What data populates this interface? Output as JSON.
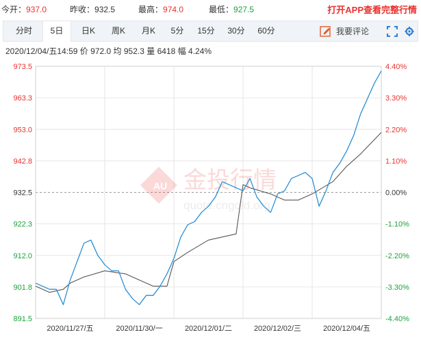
{
  "quote": {
    "open_label": "今开：",
    "open_value": "937.0",
    "prev_label": "昨收：",
    "prev_value": "932.5",
    "high_label": "最高：",
    "high_value": "974.0",
    "low_label": "最低：",
    "low_value": "927.5",
    "app_link": "打开APP查看完整行情"
  },
  "tabs": [
    "分时",
    "5日",
    "日K",
    "周K",
    "月K",
    "5分",
    "15分",
    "30分",
    "60分"
  ],
  "active_tab": "5日",
  "toolbar": {
    "comment_label": "我要评论"
  },
  "info": {
    "datetime": "2020/12/04/五14:59",
    "price_label": "价",
    "price": "972.0",
    "avg_label": "均",
    "avg": "952.3",
    "volume_label": "量",
    "volume": "6418",
    "amp_label": "幅",
    "amp": "4.24%"
  },
  "watermark": {
    "brand": "金投行情",
    "url": "quote.cngold.org"
  },
  "colors": {
    "up": "#e8322e",
    "down": "#1aa33b",
    "price_line": "#2b8fd6",
    "avg_line": "#555555",
    "grid": "#e6e6e6"
  },
  "chart_data": {
    "type": "line",
    "prev_close": 932.5,
    "y_ticks": [
      "973.5",
      "963.3",
      "953.0",
      "942.8",
      "932.5",
      "922.3",
      "912.0",
      "901.8",
      "891.5"
    ],
    "pct_ticks": [
      "4.40%",
      "3.30%",
      "2.20%",
      "1.10%",
      "0.00%",
      "-1.10%",
      "-2.20%",
      "-3.30%",
      "-4.40%"
    ],
    "ylim": [
      891.5,
      973.5
    ],
    "x_labels": [
      "2020/11/27/五",
      "2020/11/30/一",
      "2020/12/01/二",
      "2020/12/02/三",
      "2020/12/04/五"
    ],
    "series": [
      {
        "x": [
          0,
          0.02,
          0.04,
          0.06,
          0.08,
          0.1,
          0.12,
          0.14,
          0.16,
          0.18,
          0.2,
          0.22,
          0.24,
          0.26,
          0.28,
          0.3,
          0.32,
          0.34,
          0.36,
          0.38,
          0.4,
          0.42,
          0.44,
          0.46,
          0.48,
          0.5,
          0.52,
          0.54,
          0.56,
          0.58,
          0.6,
          0.62,
          0.64,
          0.66,
          0.68,
          0.7,
          0.72,
          0.74,
          0.76,
          0.78,
          0.8,
          0.82,
          0.84,
          0.86,
          0.88,
          0.9,
          0.92,
          0.94,
          0.96,
          0.98,
          1
        ],
        "values": [
          903,
          902,
          901,
          901,
          896,
          904,
          910,
          916,
          917,
          912,
          909,
          907,
          907,
          901,
          898,
          896,
          899,
          899,
          902,
          906,
          911,
          918,
          922,
          923,
          926,
          928,
          931,
          936,
          935,
          934,
          933,
          937,
          931,
          928,
          926,
          932,
          933,
          937,
          938,
          939,
          937,
          928,
          933,
          939,
          942,
          946,
          951,
          958,
          963,
          968,
          972
        ]
      },
      {
        "x": [
          0,
          0.04,
          0.08,
          0.1,
          0.14,
          0.2,
          0.26,
          0.34,
          0.38,
          0.4,
          0.44,
          0.5,
          0.58,
          0.6,
          0.62,
          0.68,
          0.72,
          0.76,
          0.8,
          0.86,
          0.9,
          0.94,
          1
        ],
        "values": [
          902,
          900,
          901,
          903,
          905,
          907,
          906,
          902,
          902,
          910,
          913,
          917,
          919,
          935,
          934,
          932,
          930,
          930,
          932,
          936,
          941,
          945,
          952
        ]
      }
    ]
  }
}
